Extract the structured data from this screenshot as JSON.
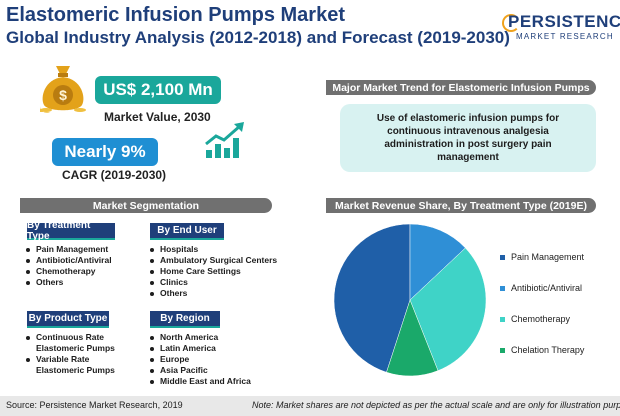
{
  "header": {
    "title": "Elastomeric Infusion Pumps Market",
    "subtitle": "Global Industry Analysis (2012-2018) and Forecast (2019-2030)"
  },
  "logo": {
    "main": "PERSISTENCE",
    "sub": "MARKET RESEARCH"
  },
  "kpis": {
    "market_value": "US$ 2,100 Mn",
    "market_value_label": "Market Value, 2030",
    "cagr": "Nearly 9%",
    "cagr_label": "CAGR (2019-2030)"
  },
  "trend": {
    "header": "Major Market Trend for Elastomeric Infusion Pumps",
    "text": "Use of elastomeric infusion pumps for continuous intravenous analgesia administration in post surgery pain management"
  },
  "segmentation": {
    "header": "Market Segmentation",
    "groups": [
      {
        "title": "By Treatment Type",
        "items": [
          "Pain Management",
          "Antibiotic/Antiviral",
          "Chemotherapy",
          "Others"
        ]
      },
      {
        "title": "By End User",
        "items": [
          "Hospitals",
          "Ambulatory Surgical Centers",
          "Home Care Settings",
          "Clinics",
          "Others"
        ]
      },
      {
        "title": "By Product Type",
        "items": [
          "Continuous Rate Elastomeric Pumps",
          "Variable Rate Elastomeric Pumps"
        ]
      },
      {
        "title": "By Region",
        "items": [
          "North America",
          "Latin America",
          "Europe",
          "Asia Pacific",
          "Middle East and Africa"
        ]
      }
    ]
  },
  "chart_header": "Market Revenue Share, By Treatment Type (2019E)",
  "chart_data": {
    "type": "pie",
    "title": "Market Revenue Share, By Treatment Type (2019E)",
    "labels": [
      "Pain Management",
      "Antibiotic/Antiviral",
      "Chemotherapy",
      "Chelation Therapy"
    ],
    "values": [
      45,
      13,
      31,
      11
    ],
    "colors": [
      "#1f5fa8",
      "#2f8fd6",
      "#3fd3c7",
      "#1aa96a"
    ],
    "legend_position": "right"
  },
  "footer": {
    "source": "Source: Persistence Market Research, 2019",
    "note": "Note: Market shares are not depicted as per the actual scale and are only for illustration purposes."
  },
  "colors": {
    "navy": "#1f3f7a",
    "teal": "#1aa79b",
    "blue": "#1f8fd3",
    "gray_bar": "#707070"
  },
  "icons": [
    "money-bag-icon",
    "growth-chart-icon"
  ]
}
